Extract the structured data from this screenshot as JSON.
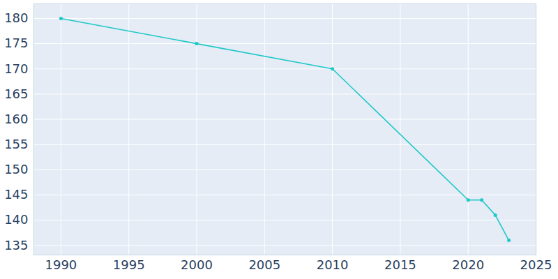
{
  "chart_data": {
    "type": "line",
    "x": [
      1990,
      2000,
      2010,
      2020,
      2021,
      2022,
      2023
    ],
    "values": [
      180,
      175,
      170,
      144,
      144,
      141,
      136
    ],
    "color": "#1fc8c8",
    "marker": "circle",
    "line_style": "solid",
    "xlim": [
      1988,
      2025
    ],
    "xticks": [
      1990,
      1995,
      2000,
      2005,
      2010,
      2015,
      2020,
      2025
    ],
    "ylim": [
      133.1,
      182.9
    ],
    "yticks": [
      135,
      140,
      145,
      150,
      155,
      160,
      165,
      170,
      175,
      180
    ],
    "grid": true
  }
}
